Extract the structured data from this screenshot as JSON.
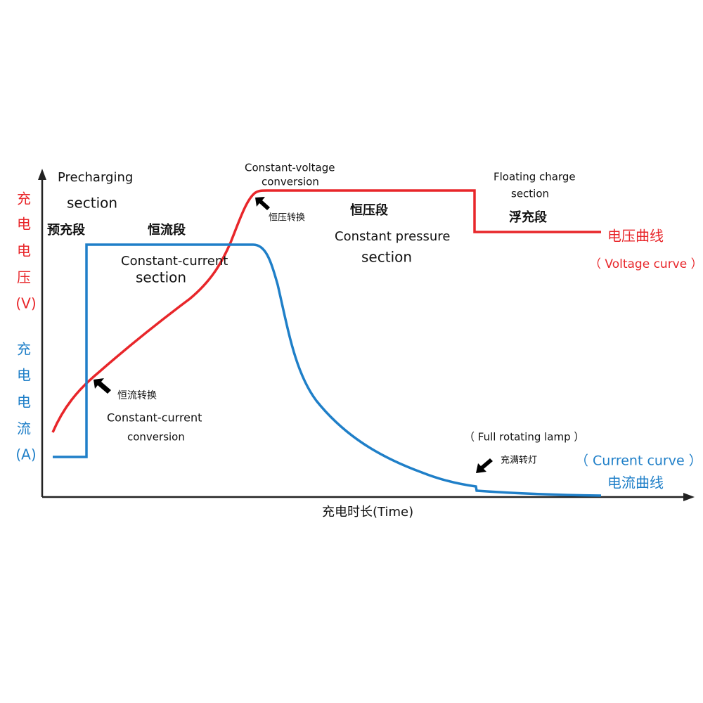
{
  "axes": {
    "y_voltage": [
      "充",
      "电",
      "电",
      "压",
      "(V)"
    ],
    "y_current": [
      "充",
      "电",
      "电",
      "流",
      "(A)"
    ],
    "x": "充电时长(Time)"
  },
  "precharge": {
    "en_1": "Precharging",
    "en_2": "section",
    "zh": "预充段"
  },
  "constant_current": {
    "zh": "恒流段",
    "en_1": "Constant-current",
    "en_2": "section"
  },
  "cv_conversion": {
    "en_1": "Constant-voltage",
    "en_2": "conversion",
    "zh": "恒压转换"
  },
  "constant_voltage": {
    "zh": "恒压段",
    "en_1": "Constant pressure",
    "en_2": "section"
  },
  "floating": {
    "en_1": "Floating charge",
    "en_2": "section",
    "zh": "浮充段"
  },
  "voltage_curve": {
    "zh": "电压曲线",
    "en": "（ Voltage curve ）"
  },
  "cc_conversion": {
    "zh": "恒流转换",
    "en_1": "Constant-current",
    "en_2": "conversion"
  },
  "full_lamp": {
    "en": "（ Full rotating lamp ）",
    "zh": "充满转灯"
  },
  "current_curve": {
    "en": "（ Current curve ）",
    "zh": "电流曲线"
  }
}
